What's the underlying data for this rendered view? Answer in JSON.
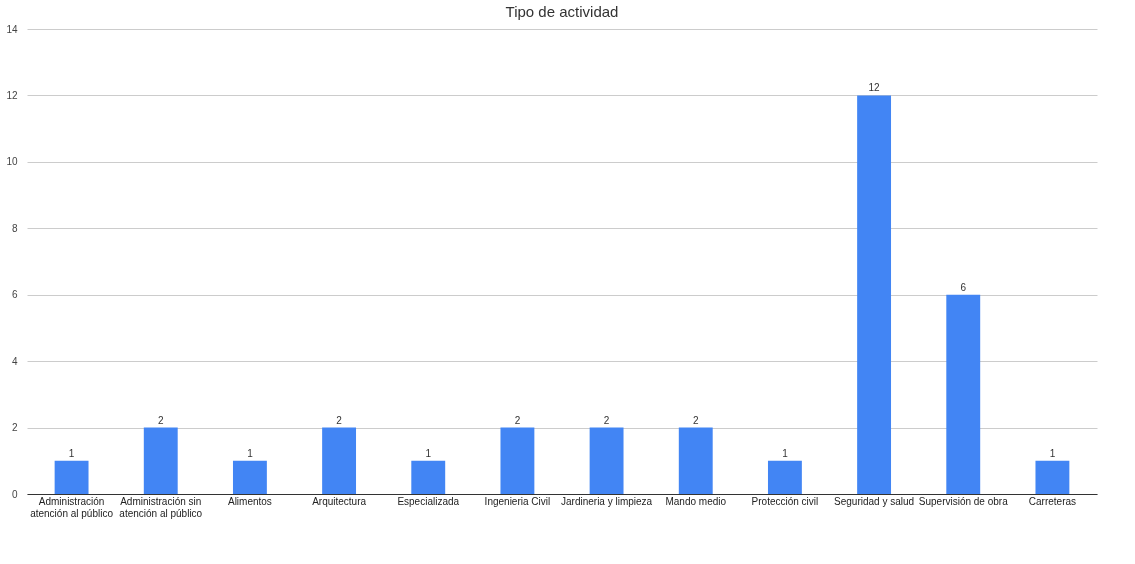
{
  "chart_data": {
    "type": "bar",
    "title": "Tipo de actividad",
    "categories": [
      "Administración atención al público",
      "Administración sin atención al público",
      "Alimentos",
      "Arquitectura",
      "Especializada",
      "Ingenieria Civil",
      "Jardineria y limpieza",
      "Mando medio",
      "Protección civil",
      "Seguridad y salud",
      "Supervisión de obra",
      "Carreteras"
    ],
    "values": [
      1,
      2,
      1,
      2,
      1,
      2,
      2,
      2,
      1,
      12,
      6,
      1
    ],
    "color": "#4285f4",
    "ylim": [
      0,
      14
    ],
    "yticks": [
      0,
      2,
      4,
      6,
      8,
      10,
      12,
      14
    ],
    "grid": "y",
    "data_labels": true
  }
}
